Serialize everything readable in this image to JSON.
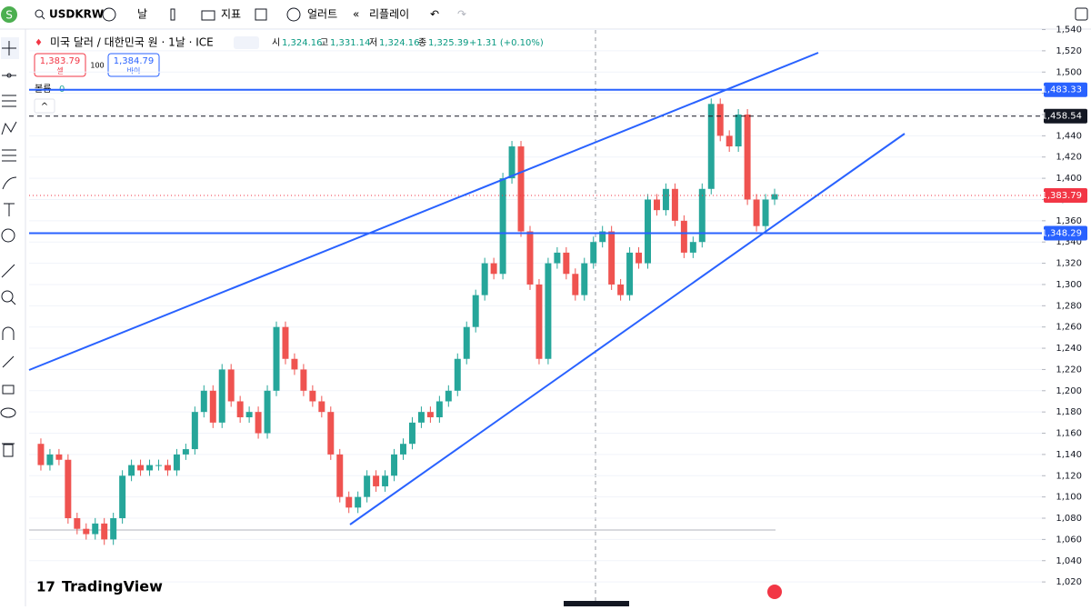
{
  "toolbar": {
    "avatar": "S",
    "symbol": "USDKRW",
    "interval": "날",
    "indicators": "지표",
    "alert": "얼러트",
    "replay": "리플레이"
  },
  "legend": {
    "title": "미국 달러 / 대한민국 원 · 1날 · ICE",
    "open_label": "시",
    "open": "1,324.16",
    "high_label": "고",
    "high": "1,331.14",
    "low_label": "저",
    "low": "1,324.16",
    "close_label": "종",
    "close": "1,325.39",
    "change": "+1.31 (+0.10%)"
  },
  "trade": {
    "sell_price": "1,383.79",
    "sell_label": "셀",
    "quantity": "100",
    "buy_price": "1,384.79",
    "buy_label": "바이"
  },
  "volume": {
    "label": "볼륨",
    "value": "0"
  },
  "brand": "TradingView",
  "chart_data": {
    "type": "candlestick",
    "values": [
      1150,
      1130,
      1140,
      1135,
      1080,
      1070,
      1065,
      1075,
      1060,
      1080,
      1120,
      1130,
      1125,
      1130,
      1130,
      1125,
      1140,
      1145,
      1180,
      1200,
      1170,
      1220,
      1190,
      1175,
      1180,
      1160,
      1200,
      1260,
      1230,
      1220,
      1200,
      1190,
      1180,
      1140,
      1100,
      1090,
      1100,
      1120,
      1110,
      1120,
      1140,
      1150,
      1170,
      1180,
      1175,
      1190,
      1200,
      1230,
      1260,
      1290,
      1320,
      1310,
      1400,
      1430,
      1350,
      1300,
      1230,
      1320,
      1330,
      1310,
      1290,
      1320,
      1340,
      1350,
      1300,
      1290,
      1330,
      1320,
      1380,
      1370,
      1390,
      1360,
      1330,
      1340,
      1390,
      1470,
      1440,
      1430,
      1460,
      1380,
      1355,
      1380,
      1385
    ],
    "up_color": "#26a69a",
    "down_color": "#ef5350",
    "ylim": [
      997,
      1549
    ],
    "yticks": [
      {
        "value": 1020,
        "label": "1,020"
      },
      {
        "value": 1040,
        "label": "1,040"
      },
      {
        "value": 1060,
        "label": "1,060"
      },
      {
        "value": 1080,
        "label": "1,080"
      },
      {
        "value": 1100,
        "label": "1,100"
      },
      {
        "value": 1120,
        "label": "1,120"
      },
      {
        "value": 1140,
        "label": "1,140"
      },
      {
        "value": 1160,
        "label": "1,160"
      },
      {
        "value": 1180,
        "label": "1,180"
      },
      {
        "value": 1200,
        "label": "1,200"
      },
      {
        "value": 1220,
        "label": "1,220"
      },
      {
        "value": 1240,
        "label": "1,240"
      },
      {
        "value": 1260,
        "label": "1,260"
      },
      {
        "value": 1280,
        "label": "1,280"
      },
      {
        "value": 1300,
        "label": "1,300"
      },
      {
        "value": 1320,
        "label": "1,320"
      },
      {
        "value": 1340,
        "label": "1,340"
      },
      {
        "value": 1360,
        "label": "1,360"
      },
      {
        "value": 1380,
        "label": "1,380"
      },
      {
        "value": 1400,
        "label": "1,400"
      },
      {
        "value": 1420,
        "label": "1,420"
      },
      {
        "value": 1440,
        "label": "1,440"
      },
      {
        "value": 1460,
        "label": "1,460"
      },
      {
        "value": 1480,
        "label": "1,480"
      },
      {
        "value": 1500,
        "label": "1,500"
      },
      {
        "value": 1520,
        "label": "1,520"
      },
      {
        "value": 1540,
        "label": "1,540"
      }
    ],
    "grid": true,
    "price_lines": [
      {
        "value": 1483.33,
        "label": "1,483.33",
        "color": "#2962ff",
        "style": "solid"
      },
      {
        "value": 1458.54,
        "label": "1,458.54",
        "color": "#131722",
        "style": "dashed"
      },
      {
        "value": 1383.79,
        "label": "1,383.79",
        "color": "#f23645",
        "style": "dotted"
      },
      {
        "value": 1348.29,
        "label": "1,348.29",
        "color": "#2962ff",
        "style": "solid"
      }
    ]
  }
}
